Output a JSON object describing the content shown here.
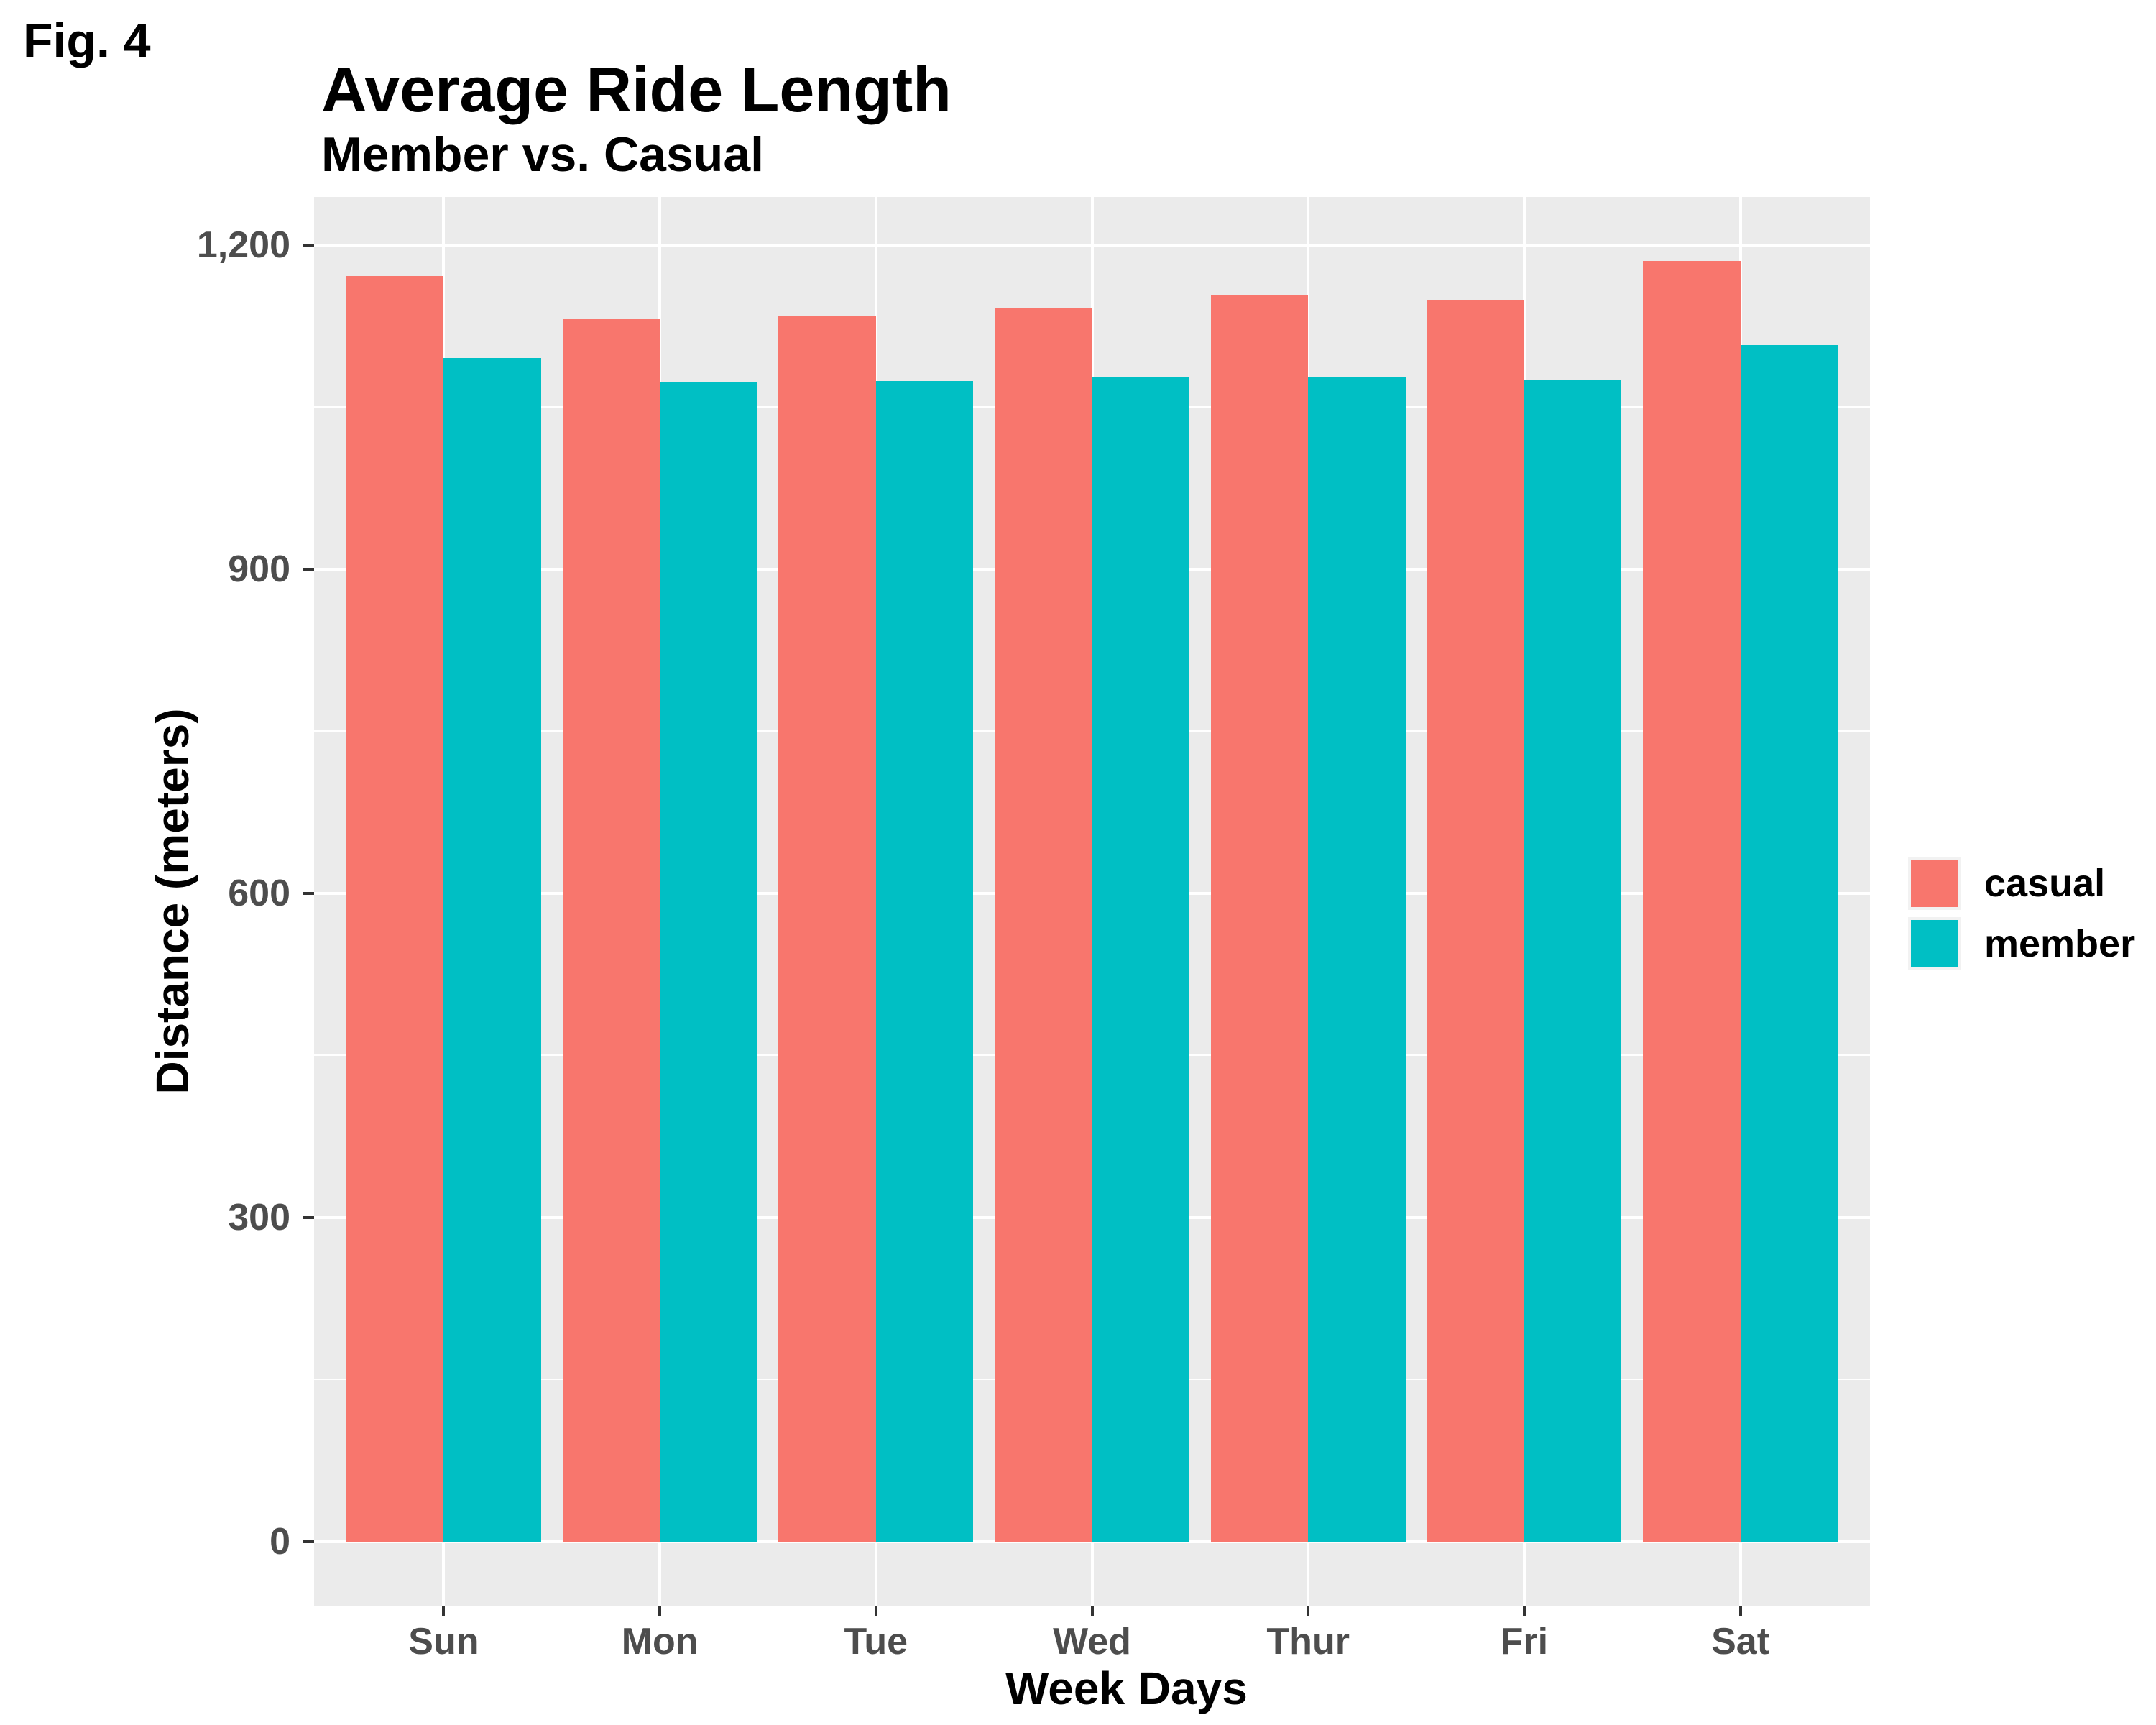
{
  "figure_label": "Fig. 4",
  "chart_data": {
    "type": "bar",
    "title": "Average Ride Length",
    "subtitle": "Member vs. Casual",
    "xlabel": "Week Days",
    "ylabel": "Distance (meters)",
    "categories": [
      "Sun",
      "Mon",
      "Tue",
      "Wed",
      "Thur",
      "Fri",
      "Sat"
    ],
    "series": [
      {
        "name": "casual",
        "color": "#F8766D",
        "values": [
          1171,
          1131,
          1134,
          1142,
          1153,
          1149,
          1185
        ]
      },
      {
        "name": "member",
        "color": "#00BFC4",
        "values": [
          1095,
          1073,
          1074,
          1078,
          1078,
          1075,
          1107
        ]
      }
    ],
    "y_ticks": [
      0,
      300,
      600,
      900,
      1200
    ],
    "y_tick_labels": [
      "0",
      "300",
      "600",
      "900",
      "1,200"
    ],
    "y_minor_ticks": [
      150,
      450,
      750,
      1050
    ],
    "ylim": [
      0,
      1200
    ],
    "grid": true,
    "legend_position": "right",
    "colors": {
      "panel_background": "#EBEBEB",
      "gridline": "#FFFFFF",
      "axis_text": "#4D4D4D",
      "tick_mark": "#333333",
      "title_text": "#000000",
      "legend_key_background": "#F2F2F2"
    }
  },
  "legend": {
    "items": [
      {
        "label": "casual",
        "color": "#F8766D"
      },
      {
        "label": "member",
        "color": "#00BFC4"
      }
    ]
  }
}
